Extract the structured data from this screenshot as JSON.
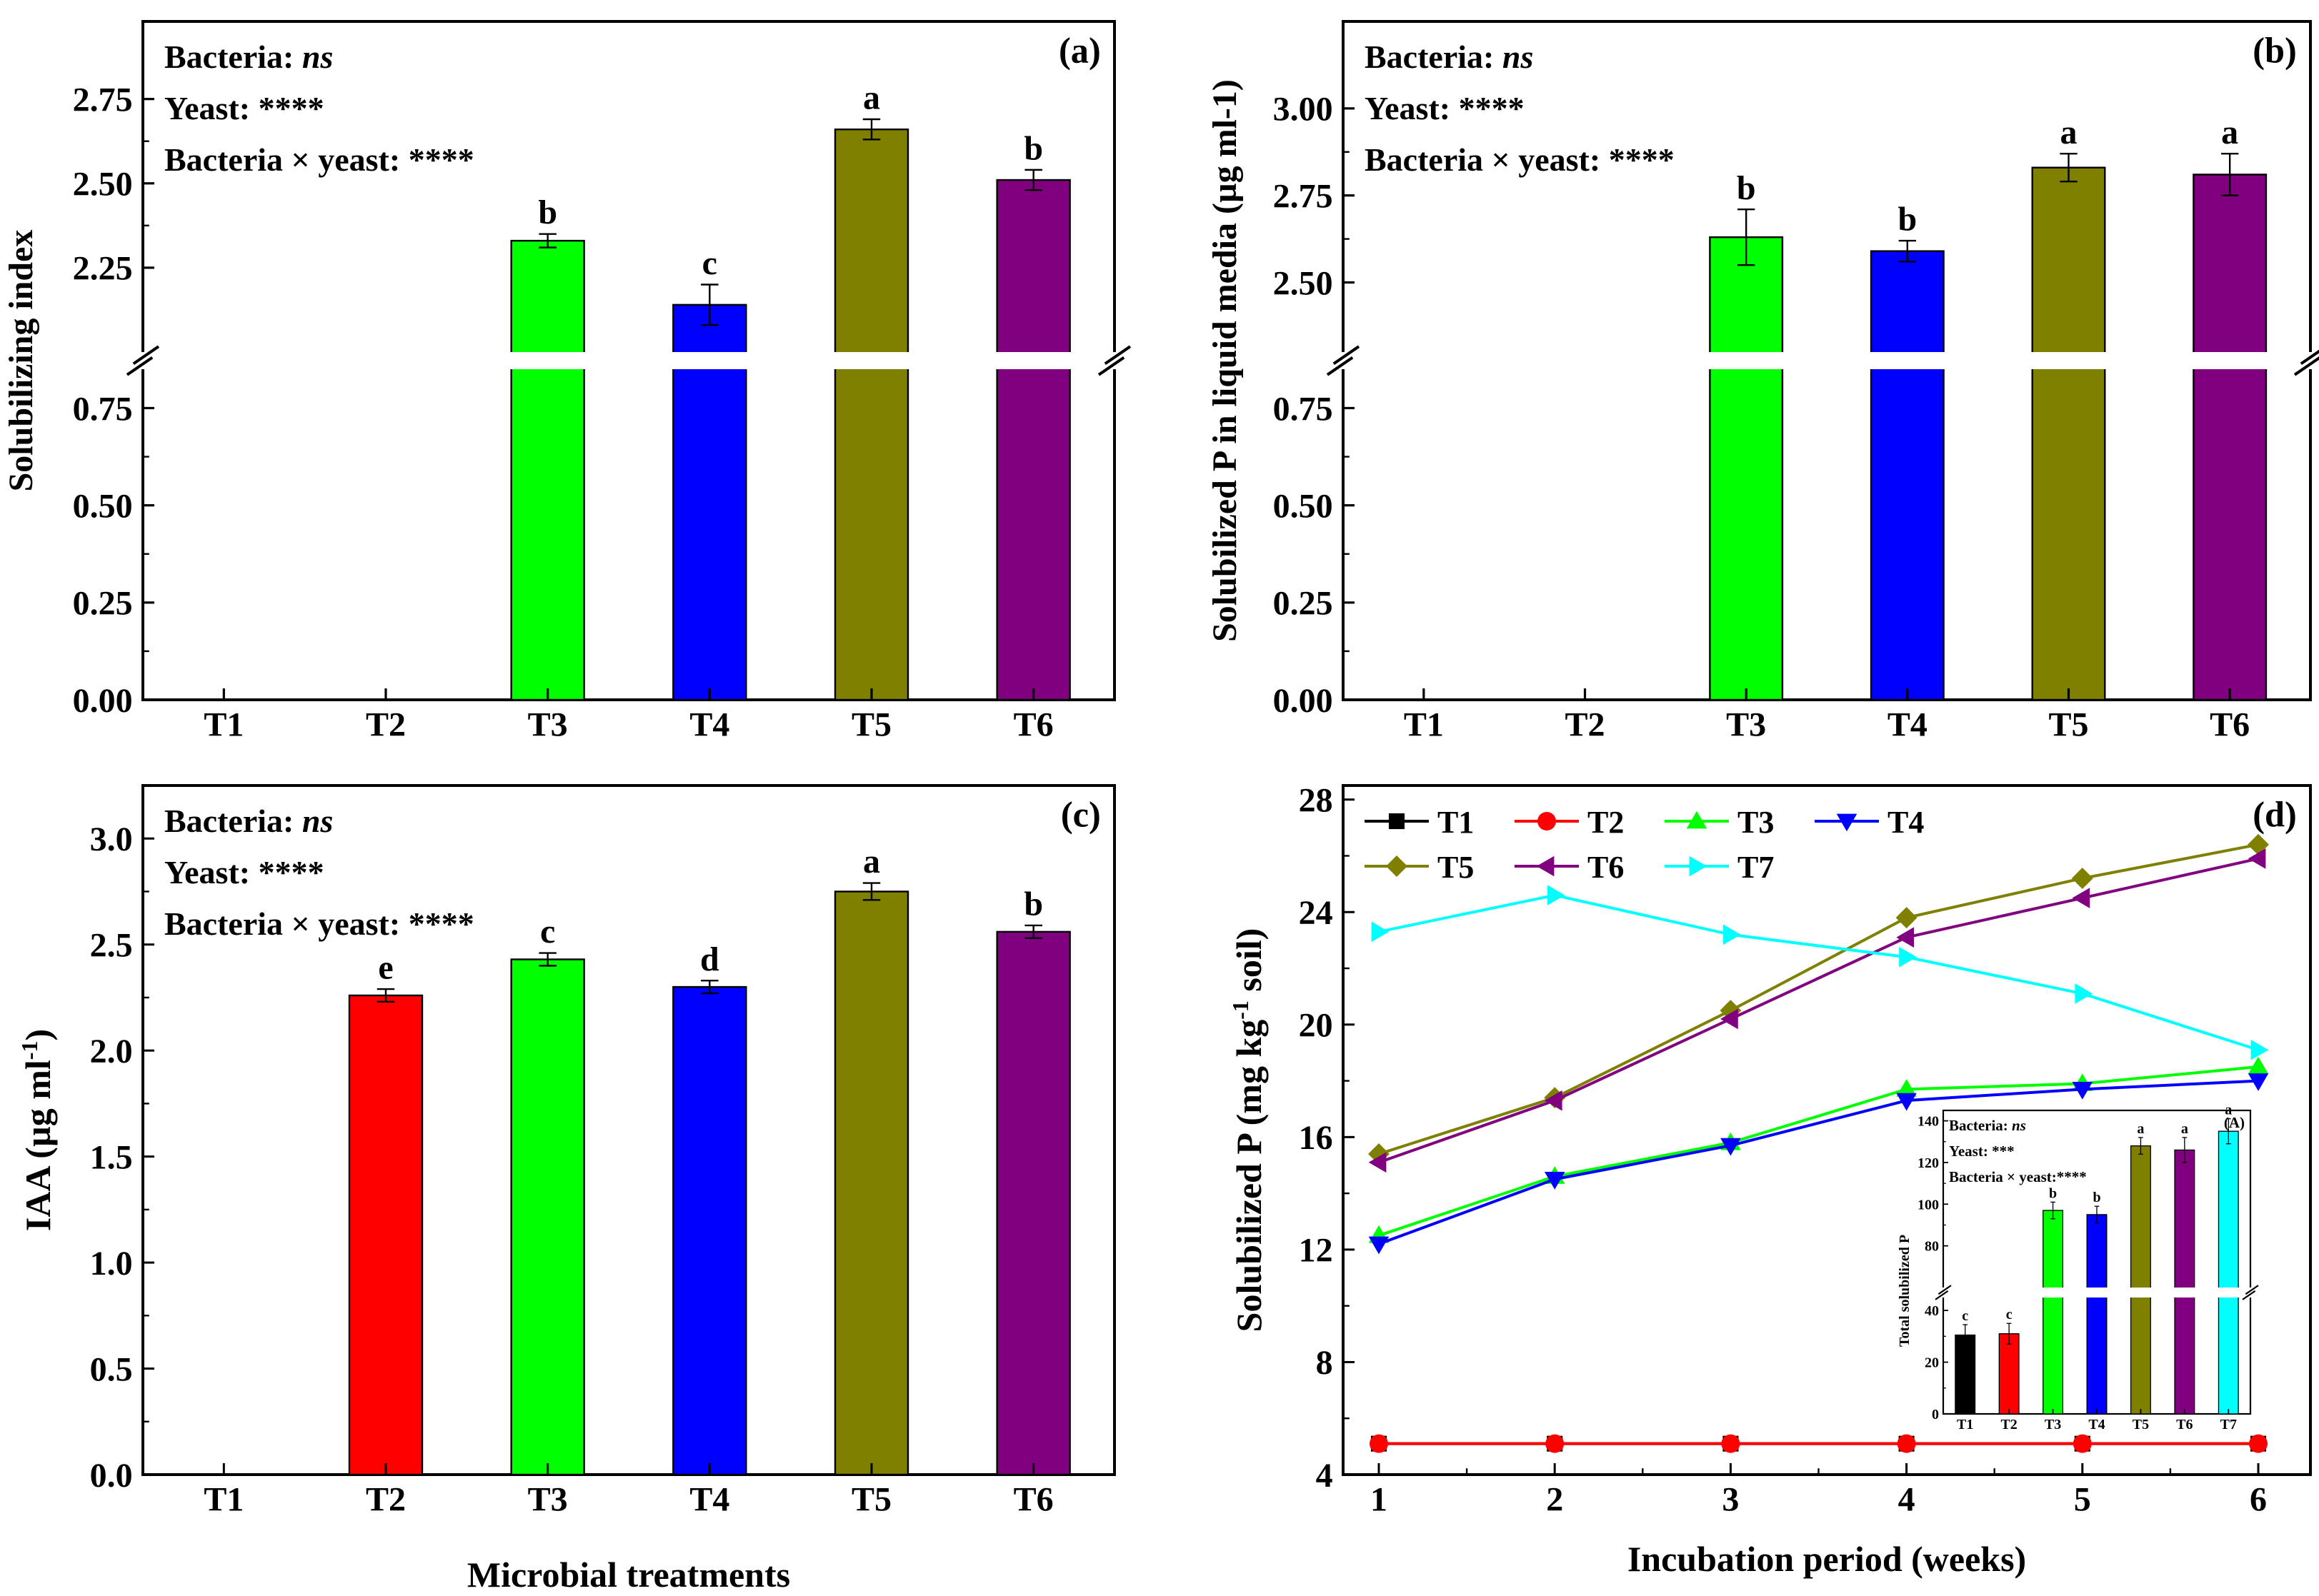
{
  "xlabel_bottom": "Microbial treatments",
  "colors": {
    "T1": "#000000",
    "T2": "#ff0000",
    "T3": "#00ff00",
    "T4": "#0000ff",
    "T5": "#808000",
    "T6": "#800080",
    "T7": "#00ffff"
  },
  "chart_data": [
    {
      "id": "a",
      "type": "bar",
      "panel_label": "(a)",
      "ylabel": "Solubilizing index",
      "categories": [
        "T1",
        "T2",
        "T3",
        "T4",
        "T5",
        "T6"
      ],
      "values": [
        0,
        0,
        2.33,
        2.14,
        2.66,
        2.51
      ],
      "errors": [
        0,
        0,
        0.02,
        0.06,
        0.03,
        0.03
      ],
      "letters": [
        "",
        "",
        "b",
        "c",
        "a",
        "b"
      ],
      "axis_break": {
        "lower": [
          0,
          0.85
        ],
        "upper": [
          2.0,
          2.98
        ]
      },
      "yticks_lower": [
        "0.00",
        "0.25",
        "0.50",
        "0.75"
      ],
      "yticks_upper": [
        "2.25",
        "2.50",
        "2.75"
      ],
      "stats": [
        {
          "prefix": "Bacteria: ",
          "em": "ns"
        },
        {
          "prefix": "Yeast: ****",
          "em": ""
        },
        {
          "prefix": "Bacteria × yeast: ****",
          "em": ""
        }
      ]
    },
    {
      "id": "b",
      "type": "bar",
      "panel_label": "(b)",
      "ylabel": "Solubilized P in liquid media (µg ml-1)",
      "categories": [
        "T1",
        "T2",
        "T3",
        "T4",
        "T5",
        "T6"
      ],
      "values": [
        0,
        0,
        2.63,
        2.59,
        2.83,
        2.81
      ],
      "errors": [
        0,
        0,
        0.08,
        0.03,
        0.04,
        0.06
      ],
      "letters": [
        "",
        "",
        "b",
        "b",
        "a",
        "a"
      ],
      "axis_break": {
        "lower": [
          0,
          0.85
        ],
        "upper": [
          2.3,
          3.25
        ]
      },
      "yticks_lower": [
        "0.00",
        "0.25",
        "0.50",
        "0.75"
      ],
      "yticks_upper": [
        "2.50",
        "2.75",
        "3.00"
      ],
      "stats": [
        {
          "prefix": "Bacteria: ",
          "em": "ns"
        },
        {
          "prefix": "Yeast: ****",
          "em": ""
        },
        {
          "prefix": "Bacteria × yeast: ****",
          "em": ""
        }
      ]
    },
    {
      "id": "c",
      "type": "bar",
      "panel_label": "(c)",
      "ylabel_main": "IAA (µg ml",
      "ylabel_sup": "-1",
      "ylabel_end": ")",
      "categories": [
        "T1",
        "T2",
        "T3",
        "T4",
        "T5",
        "T6"
      ],
      "values": [
        0,
        2.26,
        2.43,
        2.3,
        2.75,
        2.56
      ],
      "errors": [
        0,
        0.03,
        0.03,
        0.03,
        0.04,
        0.03
      ],
      "letters": [
        "",
        "e",
        "c",
        "d",
        "a",
        "b"
      ],
      "ylim": [
        0,
        3.25
      ],
      "yticks": [
        "0.0",
        "0.5",
        "1.0",
        "1.5",
        "2.0",
        "2.5",
        "3.0"
      ],
      "stats": [
        {
          "prefix": "Bacteria: ",
          "em": "ns"
        },
        {
          "prefix": "Yeast: ****",
          "em": ""
        },
        {
          "prefix": "Bacteria × yeast: ****",
          "em": ""
        }
      ]
    },
    {
      "id": "d",
      "type": "line",
      "panel_label": "(d)",
      "xlabel": "Incubation period (weeks)",
      "ylabel_main": "Solubilized P (mg kg",
      "ylabel_sup": "-1",
      "ylabel_end": " soil)",
      "x": [
        1,
        2,
        3,
        4,
        5,
        6
      ],
      "xticks": [
        "1",
        "2",
        "3",
        "4",
        "5",
        "6"
      ],
      "ylim": [
        4,
        28.5
      ],
      "yticks": [
        "4",
        "8",
        "12",
        "16",
        "20",
        "24",
        "28"
      ],
      "series": [
        {
          "name": "T1",
          "marker": "square",
          "values": [
            5.1,
            5.1,
            5.1,
            5.1,
            5.1,
            5.1
          ]
        },
        {
          "name": "T2",
          "marker": "circle",
          "values": [
            5.1,
            5.1,
            5.1,
            5.1,
            5.1,
            5.1
          ]
        },
        {
          "name": "T3",
          "marker": "triangle-up",
          "values": [
            12.5,
            14.6,
            15.8,
            17.7,
            17.9,
            18.5
          ]
        },
        {
          "name": "T4",
          "marker": "triangle-down",
          "values": [
            12.2,
            14.5,
            15.7,
            17.3,
            17.7,
            18.0
          ]
        },
        {
          "name": "T5",
          "marker": "diamond",
          "values": [
            15.4,
            17.4,
            20.5,
            23.8,
            25.2,
            26.4
          ]
        },
        {
          "name": "T6",
          "marker": "triangle-left",
          "values": [
            15.1,
            17.3,
            20.2,
            23.1,
            24.5,
            25.9
          ]
        },
        {
          "name": "T7",
          "marker": "triangle-right",
          "values": [
            23.3,
            24.6,
            23.2,
            22.4,
            21.1,
            19.1
          ]
        }
      ],
      "inset": {
        "type": "bar",
        "panel_label": "(A)",
        "ylabel": "Total solubilized P",
        "categories": [
          "T1",
          "T2",
          "T3",
          "T4",
          "T5",
          "T6",
          "T7"
        ],
        "values": [
          30.5,
          31,
          97,
          95,
          128,
          126,
          135
        ],
        "errors": [
          4,
          4,
          4,
          4,
          4,
          6,
          6
        ],
        "letters": [
          "c",
          "c",
          "b",
          "b",
          "a",
          "a",
          "a"
        ],
        "axis_break": {
          "lower": [
            0,
            45
          ],
          "upper": [
            60,
            145
          ]
        },
        "yticks_lower": [
          "0",
          "20",
          "40"
        ],
        "yticks_upper": [
          "80",
          "100",
          "120",
          "140"
        ],
        "stats": [
          {
            "prefix": "Bacteria: ",
            "em": "ns"
          },
          {
            "prefix": "Yeast: ***",
            "em": ""
          },
          {
            "prefix": "Bacteria × yeast:****",
            "em": ""
          }
        ]
      }
    }
  ]
}
